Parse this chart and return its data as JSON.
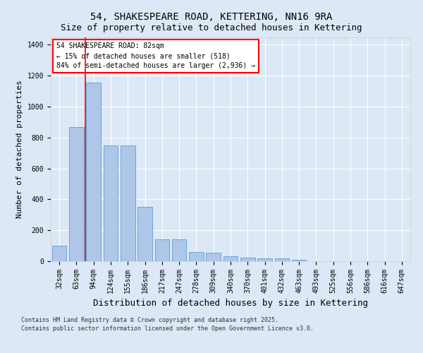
{
  "title": "54, SHAKESPEARE ROAD, KETTERING, NN16 9RA",
  "subtitle": "Size of property relative to detached houses in Kettering",
  "xlabel": "Distribution of detached houses by size in Kettering",
  "ylabel": "Number of detached properties",
  "categories": [
    "32sqm",
    "63sqm",
    "94sqm",
    "124sqm",
    "155sqm",
    "186sqm",
    "217sqm",
    "247sqm",
    "278sqm",
    "309sqm",
    "340sqm",
    "370sqm",
    "401sqm",
    "432sqm",
    "463sqm",
    "493sqm",
    "525sqm",
    "556sqm",
    "586sqm",
    "616sqm",
    "647sqm"
  ],
  "values": [
    100,
    870,
    1155,
    750,
    750,
    350,
    140,
    140,
    60,
    55,
    30,
    25,
    20,
    20,
    10,
    0,
    0,
    0,
    0,
    0,
    0
  ],
  "bar_color": "#aec6e8",
  "bar_edge_color": "#5a9fd4",
  "background_color": "#dce8f5",
  "red_line_x": 1.5,
  "annotation_title": "54 SHAKESPEARE ROAD: 82sqm",
  "annotation_line1": "← 15% of detached houses are smaller (518)",
  "annotation_line2": "84% of semi-detached houses are larger (2,936) →",
  "footnote1": "Contains HM Land Registry data © Crown copyright and database right 2025.",
  "footnote2": "Contains public sector information licensed under the Open Government Licence v3.0.",
  "ylim": [
    0,
    1450
  ],
  "yticks": [
    0,
    200,
    400,
    600,
    800,
    1000,
    1200,
    1400
  ],
  "title_fontsize": 10,
  "subtitle_fontsize": 9,
  "axis_label_fontsize": 8,
  "xlabel_fontsize": 9,
  "tick_fontsize": 7,
  "annotation_fontsize": 7,
  "footnote_fontsize": 6
}
